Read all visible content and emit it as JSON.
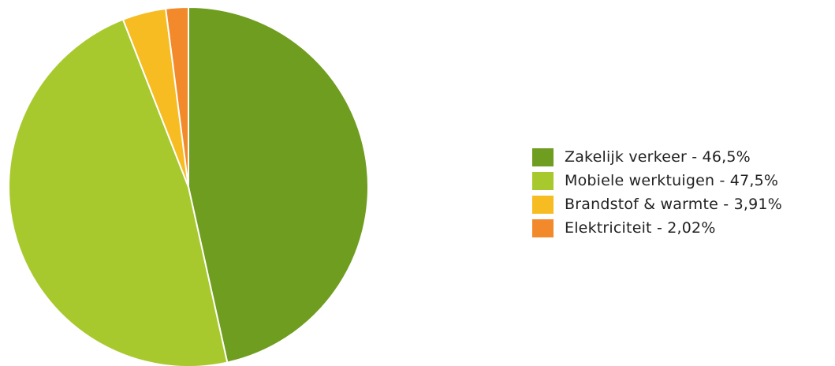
{
  "chart_data": {
    "type": "pie",
    "title": "",
    "start_angle_deg": 0,
    "direction": "clockwise",
    "slices": [
      {
        "label": "Zakelijk verkeer - 46,5%",
        "value": 46.5,
        "color": "#6e9d20"
      },
      {
        "label": "Mobiele werktuigen - 47,5%",
        "value": 47.5,
        "color": "#a8c92e"
      },
      {
        "label": "Brandstof & warmte - 3,91%",
        "value": 3.91,
        "color": "#f6bc22"
      },
      {
        "label": "Elektriciteit - 2,02%",
        "value": 2.02,
        "color": "#f28a2c"
      }
    ],
    "legend_position": "right"
  }
}
